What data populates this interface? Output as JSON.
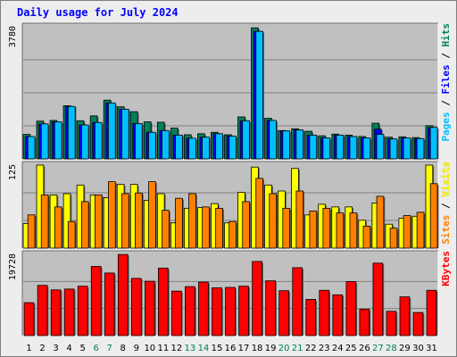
{
  "chart_data": {
    "type": "bar",
    "title": "Daily usage for July 2024",
    "days": [
      "1",
      "2",
      "3",
      "4",
      "5",
      "6",
      "7",
      "8",
      "9",
      "10",
      "11",
      "12",
      "13",
      "14",
      "15",
      "16",
      "17",
      "18",
      "19",
      "20",
      "21",
      "22",
      "23",
      "24",
      "25",
      "26",
      "27",
      "28",
      "29",
      "30",
      "31"
    ],
    "weekend_days": [
      "6",
      "7",
      "13",
      "14",
      "20",
      "21",
      "27",
      "28"
    ],
    "colors": {
      "hits": "#00805c",
      "files": "#0000ff",
      "pages": "#00c0ff",
      "visits": "#ffff00",
      "sites": "#ff8000",
      "kbytes": "#ff0000",
      "weekend_label": "#00805c",
      "weekday_label": "#000000",
      "panel_bg": "#c0c0c0"
    },
    "panels": [
      {
        "id": "hits-files-pages",
        "ymax": 3780,
        "ymax_label": "3780",
        "axis_label_parts": [
          {
            "text": "Pages",
            "color": "#00c0ff"
          },
          {
            "text": " / ",
            "color": "#000000"
          },
          {
            "text": "Files",
            "color": "#0000ff"
          },
          {
            "text": " / ",
            "color": "#000000"
          },
          {
            "text": "Hits",
            "color": "#00805c"
          }
        ],
        "series": [
          {
            "name": "Hits",
            "color": "#00805c",
            "values": [
              700,
              1080,
              1100,
              1520,
              1090,
              1230,
              1680,
              1490,
              1350,
              1060,
              1050,
              880,
              690,
              720,
              760,
              690,
              1200,
              3750,
              1160,
              810,
              860,
              790,
              660,
              710,
              680,
              640,
              1020,
              620,
              630,
              610,
              950
            ]
          },
          {
            "name": "Files",
            "color": "#0000ff",
            "values": [
              640,
              1000,
              1060,
              1500,
              970,
              1040,
              1600,
              1420,
              1010,
              760,
              810,
              680,
              590,
              620,
              720,
              650,
              1090,
              3650,
              1100,
              800,
              830,
              680,
              600,
              680,
              640,
              600,
              850,
              570,
              600,
              580,
              900
            ]
          },
          {
            "name": "Pages",
            "color": "#00c0ff",
            "values": [
              640,
              1000,
              1060,
              1500,
              970,
              1040,
              1600,
              1420,
              1010,
              760,
              810,
              680,
              590,
              620,
              720,
              650,
              1090,
              3650,
              1100,
              800,
              830,
              680,
              600,
              680,
              640,
              600,
              700,
              570,
              600,
              580,
              900
            ]
          }
        ]
      },
      {
        "id": "visits-sites",
        "ymax": 125,
        "ymax_label": "125",
        "axis_label_parts": [
          {
            "text": "Sites",
            "color": "#ff8000"
          },
          {
            "text": " / ",
            "color": "#000000"
          },
          {
            "text": "Visits",
            "color": "#ffff00"
          }
        ],
        "series": [
          {
            "name": "Visits",
            "color": "#ffff00",
            "values": [
              37,
              125,
              80,
              82,
              95,
              80,
              76,
              96,
              96,
              72,
              82,
              38,
              60,
              61,
              67,
              38,
              84,
              122,
              95,
              86,
              120,
              50,
              66,
              62,
              62,
              42,
              68,
              36,
              45,
              48,
              125
            ]
          },
          {
            "name": "Sites",
            "color": "#ff8000",
            "values": [
              50,
              80,
              62,
              40,
              70,
              80,
              100,
              82,
              83,
              100,
              57,
              75,
              82,
              62,
              60,
              40,
              70,
              105,
              82,
              60,
              86,
              56,
              60,
              53,
              53,
              33,
              78,
              30,
              49,
              54,
              97
            ]
          }
        ]
      },
      {
        "id": "kbytes",
        "ymax": 19728,
        "ymax_label": "19728",
        "axis_label_parts": [
          {
            "text": "KBytes",
            "color": "#ff0000"
          }
        ],
        "series": [
          {
            "name": "KBytes",
            "color": "#ff0000",
            "values": [
              8000,
              12200,
              11100,
              11300,
              12000,
              16800,
              15200,
              19700,
              13900,
              13200,
              16400,
              10800,
              11900,
              13000,
              11600,
              11700,
              12000,
              18000,
              13300,
              10900,
              16500,
              8800,
              11000,
              9900,
              13100,
              6400,
              17600,
              5900,
              9400,
              5600,
              11000
            ]
          }
        ]
      }
    ]
  }
}
